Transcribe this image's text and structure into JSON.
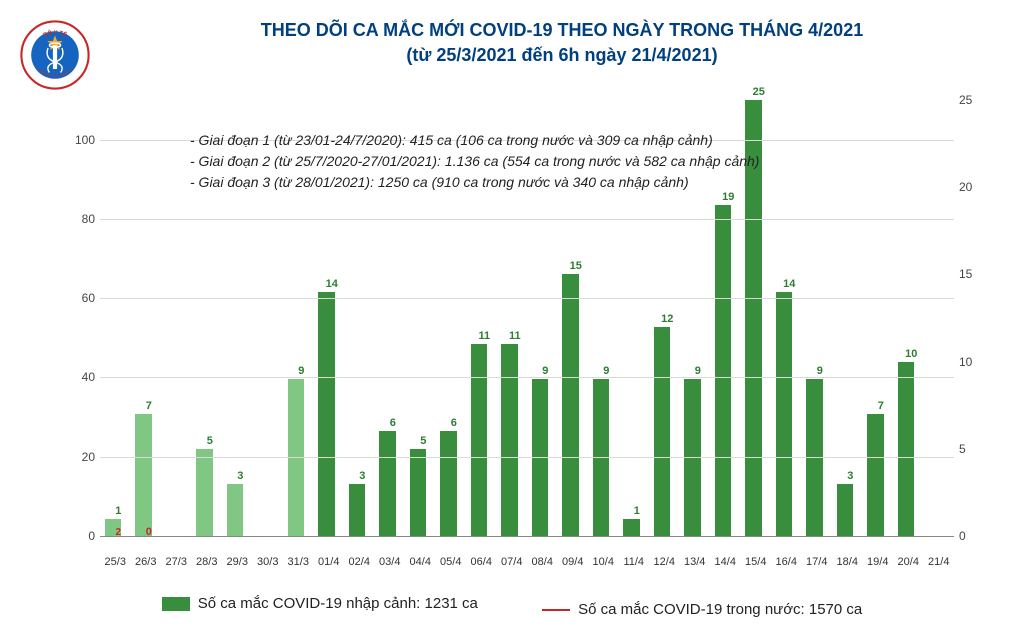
{
  "header": {
    "title_line1": "THEO DÕI CA MẮC MỚI COVID-19 THEO NGÀY TRONG THÁNG 4/2021",
    "title_line2": "(từ 25/3/2021 đến 6h ngày 21/4/2021)",
    "title_color": "#004080"
  },
  "logo": {
    "outer_text_top": "BỘ Y TẾ",
    "outer_text_bottom": "MINISTRY OF HEALTH",
    "ring_color": "#c62828",
    "circle_color": "#1565c0",
    "star_color": "#f9a825"
  },
  "notes": {
    "line1": "- Giai đoạn 1 (từ 23/01-24/7/2020): 415 ca (106 ca trong nước và 309 ca nhập cảnh)",
    "line2": "- Giai đoạn 2 (từ 25/7/2020-27/01/2021): 1.136 ca (554 ca trong nước và 582 ca nhập cảnh)",
    "line3": "- Giai đoạn 3 (từ 28/01/2021): 1250 ca (910 ca trong nước và 340 ca nhập cảnh)"
  },
  "chart": {
    "type": "bar",
    "left_axis": {
      "min": 0,
      "max": 110,
      "ticks": [
        0,
        20,
        40,
        60,
        80,
        100
      ],
      "grid_color": "#d9d9d9"
    },
    "right_axis": {
      "min": 0,
      "max": 25,
      "ticks": [
        0,
        5,
        10,
        15,
        20,
        25
      ]
    },
    "early_bar_color": "#81c784",
    "late_bar_color": "#388e3c",
    "label_color_green": "#2e7d32",
    "label_color_red": "#c62828",
    "background_color": "#ffffff",
    "categories": [
      "25/3",
      "26/3",
      "27/3",
      "28/3",
      "29/3",
      "30/3",
      "31/3",
      "01/4",
      "02/4",
      "03/4",
      "04/4",
      "05/4",
      "06/4",
      "07/4",
      "08/4",
      "09/4",
      "10/4",
      "11/4",
      "12/4",
      "13/4",
      "14/4",
      "15/4",
      "16/4",
      "17/4",
      "18/4",
      "19/4",
      "20/4",
      "21/4"
    ],
    "bars": [
      {
        "value": 1,
        "color": "#81c784",
        "label": "1"
      },
      {
        "value": 7,
        "color": "#81c784",
        "label": "7",
        "below_label": "0",
        "below_label_small": "2"
      },
      {
        "value": null,
        "color": "#81c784",
        "label": ""
      },
      {
        "value": 5,
        "color": "#81c784",
        "label": "5"
      },
      {
        "value": 3,
        "color": "#81c784",
        "label": "3"
      },
      {
        "value": null,
        "color": "#81c784",
        "label": ""
      },
      {
        "value": 9,
        "color": "#81c784",
        "label": "9"
      },
      {
        "value": 14,
        "color": "#388e3c",
        "label": "14"
      },
      {
        "value": 3,
        "color": "#388e3c",
        "label": "3"
      },
      {
        "value": 6,
        "color": "#388e3c",
        "label": "6"
      },
      {
        "value": 5,
        "color": "#388e3c",
        "label": "5"
      },
      {
        "value": 6,
        "color": "#388e3c",
        "label": "6"
      },
      {
        "value": 11,
        "color": "#388e3c",
        "label": "11"
      },
      {
        "value": 11,
        "color": "#388e3c",
        "label": "11"
      },
      {
        "value": 9,
        "color": "#388e3c",
        "label": "9"
      },
      {
        "value": 15,
        "color": "#388e3c",
        "label": "15"
      },
      {
        "value": 9,
        "color": "#388e3c",
        "label": "9"
      },
      {
        "value": 1,
        "color": "#388e3c",
        "label": "1"
      },
      {
        "value": 12,
        "color": "#388e3c",
        "label": "12"
      },
      {
        "value": 9,
        "color": "#388e3c",
        "label": "9"
      },
      {
        "value": 19,
        "color": "#388e3c",
        "label": "19"
      },
      {
        "value": 25,
        "color": "#388e3c",
        "label": "25"
      },
      {
        "value": 14,
        "color": "#388e3c",
        "label": "14"
      },
      {
        "value": 9,
        "color": "#388e3c",
        "label": "9"
      },
      {
        "value": 3,
        "color": "#388e3c",
        "label": "3"
      },
      {
        "value": 7,
        "color": "#388e3c",
        "label": "7"
      },
      {
        "value": 10,
        "color": "#388e3c",
        "label": "10"
      },
      {
        "value": null,
        "color": "#388e3c",
        "label": ""
      }
    ]
  },
  "legend": {
    "item1_swatch_color": "#388e3c",
    "item1_text": "Số ca mắc COVID-19 nhập cảnh: 1231 ca",
    "item2_line_color": "#c62828",
    "item2_text": "Số ca mắc COVID-19 trong nước: 1570 ca"
  }
}
